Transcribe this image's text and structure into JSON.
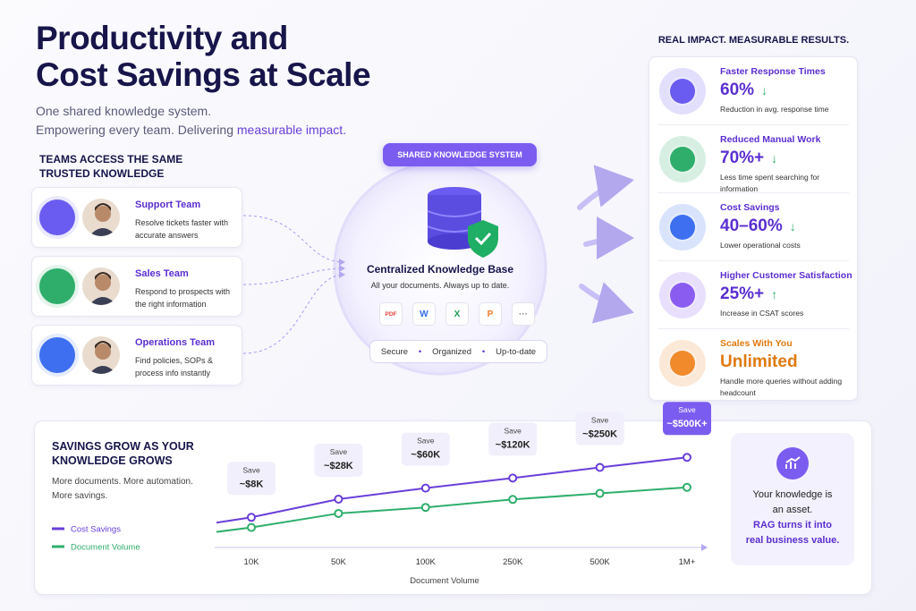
{
  "header": {
    "title_lines": [
      "Productivity and",
      "Cost Savings at Scale"
    ],
    "subtitle": "One shared knowledge system.",
    "tagline": "Empowering every team. Delivering",
    "tagline_highlight": "measurable impact."
  },
  "teams": {
    "heading": "TEAMS ACCESS THE SAME TRUSTED KNOWLEDGE",
    "items": [
      {
        "name": "Support Team",
        "description": "Resolve tickets faster with accurate answers"
      },
      {
        "name": "Sales Team",
        "description": "Respond to prospects with the right information"
      },
      {
        "name": "Operations Team",
        "description": "Find policies, SOPs & process info instantly"
      }
    ]
  },
  "center": {
    "badge": "SHARED KNOWLEDGE SYSTEM",
    "title": "Centralized Knowledge Base",
    "subtitle": "All your documents. Always up to date.",
    "file_types": [
      "PDF",
      "W",
      "X",
      "P",
      "···"
    ],
    "features": [
      "Secure",
      "Organized",
      "Up-to-date"
    ],
    "separator": "•"
  },
  "impact": {
    "heading": "REAL IMPACT. MEASURABLE RESULTS.",
    "items": [
      {
        "title": "Faster Response Times",
        "value": "60%",
        "trend": "↓",
        "description": "Reduction in avg. response time"
      },
      {
        "title": "Reduced Manual Work",
        "value": "70%+",
        "trend": "↓",
        "description": "Less time spent searching for information"
      },
      {
        "title": "Cost Savings",
        "value": "40–60%",
        "trend": "↓",
        "description": "Lower operational costs"
      },
      {
        "title": "Higher Customer Satisfaction",
        "value": "25%+",
        "trend": "↑",
        "description": "Increase in CSAT scores"
      },
      {
        "title": "Scales With You",
        "value": "Unlimited",
        "trend": "",
        "description": "Handle more queries without adding headcount"
      }
    ]
  },
  "chart_data": {
    "type": "line",
    "title": "SAVINGS GROW AS YOUR KNOWLEDGE GROWS",
    "subtitle_lines": [
      "More documents. More automation.",
      "More savings."
    ],
    "x_label": "Document Volume",
    "categories": [
      "10K",
      "50K",
      "100K",
      "250K",
      "500K",
      "1M+"
    ],
    "log_scale": true,
    "ylim": [
      1,
      1000
    ],
    "y2lim": [
      1,
      100000
    ],
    "value_label_prefix": "Save",
    "series": [
      {
        "name": "Cost Savings",
        "color": "#6a3fd9",
        "values": [
          8,
          28,
          60,
          120,
          250,
          500
        ],
        "value_labels": [
          "~$8K",
          "~$28K",
          "~$60K",
          "~$120K",
          "~$250K",
          "~$500K+"
        ]
      },
      {
        "name": "Document Volume",
        "color": "#2fae6b",
        "axis": "y2",
        "values": [
          10,
          50,
          100,
          250,
          500,
          1000
        ]
      }
    ]
  },
  "callout": {
    "lines": [
      "Your knowledge is an asset.",
      "RAG turns it into real business value."
    ]
  }
}
